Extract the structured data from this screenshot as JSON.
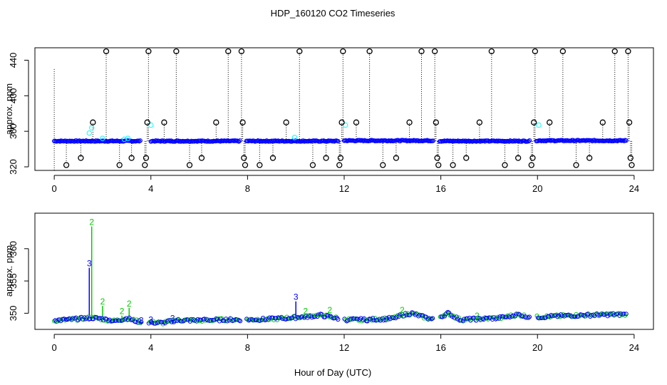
{
  "title": "HDP_160120  CO2 Timeseries",
  "xlabel": "Hour of Day (UTC)",
  "colors": {
    "circle": "#000000",
    "blue": "#0000ff",
    "cyan": "#00ffff",
    "green": "#00cc00",
    "text": "#000000"
  },
  "chart_data": [
    {
      "type": "scatter",
      "panel": "top",
      "ylabel": "approx. ppm",
      "xlim": [
        -0.8,
        24.8
      ],
      "ylim": [
        316,
        454
      ],
      "xticks": [
        0,
        4,
        8,
        12,
        16,
        20,
        24
      ],
      "yticks": [
        320,
        360,
        400,
        440
      ],
      "ytick_labels": [
        "320",
        "360",
        "400",
        "440"
      ],
      "extreme_points": [
        {
          "x": 0.5,
          "y": 322
        },
        {
          "x": 1.1,
          "y": 330
        },
        {
          "x": 1.6,
          "y": 370
        },
        {
          "x": 2.15,
          "y": 450
        },
        {
          "x": 2.7,
          "y": 322
        },
        {
          "x": 3.2,
          "y": 330
        },
        {
          "x": 3.75,
          "y": 322
        },
        {
          "x": 3.8,
          "y": 330
        },
        {
          "x": 3.85,
          "y": 370
        },
        {
          "x": 3.9,
          "y": 450
        },
        {
          "x": 4.55,
          "y": 370
        },
        {
          "x": 5.05,
          "y": 450
        },
        {
          "x": 5.6,
          "y": 322
        },
        {
          "x": 6.1,
          "y": 330
        },
        {
          "x": 6.7,
          "y": 370
        },
        {
          "x": 7.2,
          "y": 450
        },
        {
          "x": 7.75,
          "y": 450
        },
        {
          "x": 7.8,
          "y": 370
        },
        {
          "x": 7.85,
          "y": 330
        },
        {
          "x": 7.9,
          "y": 322
        },
        {
          "x": 8.5,
          "y": 322
        },
        {
          "x": 9.05,
          "y": 330
        },
        {
          "x": 9.6,
          "y": 370
        },
        {
          "x": 10.15,
          "y": 450
        },
        {
          "x": 10.7,
          "y": 322
        },
        {
          "x": 11.25,
          "y": 330
        },
        {
          "x": 11.8,
          "y": 322
        },
        {
          "x": 11.85,
          "y": 330
        },
        {
          "x": 11.9,
          "y": 370
        },
        {
          "x": 11.95,
          "y": 450
        },
        {
          "x": 12.5,
          "y": 370
        },
        {
          "x": 13.05,
          "y": 450
        },
        {
          "x": 13.6,
          "y": 322
        },
        {
          "x": 14.15,
          "y": 330
        },
        {
          "x": 14.7,
          "y": 370
        },
        {
          "x": 15.2,
          "y": 450
        },
        {
          "x": 15.75,
          "y": 450
        },
        {
          "x": 15.8,
          "y": 370
        },
        {
          "x": 15.85,
          "y": 330
        },
        {
          "x": 15.9,
          "y": 322
        },
        {
          "x": 16.5,
          "y": 322
        },
        {
          "x": 17.05,
          "y": 330
        },
        {
          "x": 17.6,
          "y": 370
        },
        {
          "x": 18.1,
          "y": 450
        },
        {
          "x": 18.65,
          "y": 322
        },
        {
          "x": 19.2,
          "y": 330
        },
        {
          "x": 19.75,
          "y": 322
        },
        {
          "x": 19.8,
          "y": 330
        },
        {
          "x": 19.85,
          "y": 370
        },
        {
          "x": 19.9,
          "y": 450
        },
        {
          "x": 20.5,
          "y": 370
        },
        {
          "x": 21.05,
          "y": 450
        },
        {
          "x": 21.6,
          "y": 322
        },
        {
          "x": 22.15,
          "y": 330
        },
        {
          "x": 22.7,
          "y": 370
        },
        {
          "x": 23.2,
          "y": 450
        },
        {
          "x": 23.75,
          "y": 450
        },
        {
          "x": 23.8,
          "y": 370
        },
        {
          "x": 23.85,
          "y": 330
        },
        {
          "x": 23.9,
          "y": 322
        }
      ],
      "cyan_points": [
        {
          "x": 1.45,
          "y": 358
        },
        {
          "x": 1.55,
          "y": 364
        },
        {
          "x": 2.0,
          "y": 352
        },
        {
          "x": 2.9,
          "y": 351
        },
        {
          "x": 3.05,
          "y": 352
        },
        {
          "x": 4.0,
          "y": 367
        },
        {
          "x": 9.95,
          "y": 353
        },
        {
          "x": 12.05,
          "y": 367
        },
        {
          "x": 20.05,
          "y": 367
        }
      ],
      "baseline_segments": [
        {
          "x_start": 0.0,
          "x_end": 3.6,
          "ppm": 349
        },
        {
          "x_start": 4.0,
          "x_end": 7.7,
          "ppm": 349
        },
        {
          "x_start": 7.95,
          "x_end": 11.75,
          "ppm": 349
        },
        {
          "x_start": 12.0,
          "x_end": 15.7,
          "ppm": 349.5
        },
        {
          "x_start": 15.95,
          "x_end": 19.7,
          "ppm": 349
        },
        {
          "x_start": 19.95,
          "x_end": 23.7,
          "ppm": 349.5
        }
      ]
    },
    {
      "type": "scatter",
      "panel": "bottom",
      "ylabel": "approx. ppm",
      "xlim": [
        -0.8,
        24.8
      ],
      "ylim": [
        347.5,
        365.5
      ],
      "xticks": [
        0,
        4,
        8,
        12,
        16,
        20,
        24
      ],
      "yticks": [
        350,
        355,
        360
      ],
      "ytick_labels": [
        "350",
        "355",
        "360"
      ],
      "series": [
        {
          "name": "2",
          "color": "#00cc00"
        },
        {
          "name": "3",
          "color": "#0000ff"
        }
      ],
      "gaps": [
        [
          3.6,
          3.9
        ],
        [
          7.7,
          7.95
        ],
        [
          11.75,
          12.0
        ],
        [
          15.7,
          15.95
        ],
        [
          19.7,
          19.95
        ]
      ],
      "profile": [
        {
          "x": 0.0,
          "y": 348.9
        },
        {
          "x": 0.6,
          "y": 349.0
        },
        {
          "x": 1.2,
          "y": 349.2
        },
        {
          "x": 1.6,
          "y": 349.3
        },
        {
          "x": 2.0,
          "y": 349.1
        },
        {
          "x": 2.5,
          "y": 348.8
        },
        {
          "x": 3.0,
          "y": 349.2
        },
        {
          "x": 3.5,
          "y": 348.7
        },
        {
          "x": 4.5,
          "y": 348.5
        },
        {
          "x": 5.0,
          "y": 348.9
        },
        {
          "x": 6.0,
          "y": 348.9
        },
        {
          "x": 7.0,
          "y": 349.0
        },
        {
          "x": 7.7,
          "y": 349.0
        },
        {
          "x": 8.0,
          "y": 349.0
        },
        {
          "x": 9.0,
          "y": 349.1
        },
        {
          "x": 9.8,
          "y": 349.3
        },
        {
          "x": 10.5,
          "y": 349.5
        },
        {
          "x": 11.0,
          "y": 349.7
        },
        {
          "x": 11.5,
          "y": 349.4
        },
        {
          "x": 12.0,
          "y": 349.0
        },
        {
          "x": 13.0,
          "y": 349.0
        },
        {
          "x": 14.0,
          "y": 349.2
        },
        {
          "x": 14.4,
          "y": 349.7
        },
        {
          "x": 14.8,
          "y": 350.0
        },
        {
          "x": 15.2,
          "y": 349.5
        },
        {
          "x": 15.7,
          "y": 349.0
        },
        {
          "x": 16.0,
          "y": 349.5
        },
        {
          "x": 16.3,
          "y": 350.0
        },
        {
          "x": 16.8,
          "y": 349.0
        },
        {
          "x": 17.5,
          "y": 349.1
        },
        {
          "x": 18.5,
          "y": 349.3
        },
        {
          "x": 19.2,
          "y": 349.8
        },
        {
          "x": 19.7,
          "y": 349.4
        },
        {
          "x": 20.0,
          "y": 349.4
        },
        {
          "x": 21.0,
          "y": 349.6
        },
        {
          "x": 22.0,
          "y": 349.7
        },
        {
          "x": 23.0,
          "y": 349.8
        },
        {
          "x": 23.7,
          "y": 349.8
        }
      ],
      "spikes": [
        {
          "series": "3",
          "x": 1.45,
          "y": 357.7
        },
        {
          "series": "2",
          "x": 1.55,
          "y": 364.1
        },
        {
          "series": "2",
          "x": 2.0,
          "y": 351.8
        },
        {
          "series": "2",
          "x": 2.8,
          "y": 350.3
        },
        {
          "series": "2",
          "x": 3.1,
          "y": 351.5
        },
        {
          "series": "3",
          "x": 3.6,
          "y": 348.9
        },
        {
          "series": "3",
          "x": 4.0,
          "y": 349.0
        },
        {
          "series": "3",
          "x": 4.9,
          "y": 349.2
        },
        {
          "series": "3",
          "x": 10.0,
          "y": 352.5
        },
        {
          "series": "2",
          "x": 10.4,
          "y": 350.3
        },
        {
          "series": "2",
          "x": 11.4,
          "y": 350.5
        },
        {
          "series": "2",
          "x": 14.4,
          "y": 350.5
        },
        {
          "series": "2",
          "x": 17.5,
          "y": 349.6
        }
      ]
    }
  ]
}
